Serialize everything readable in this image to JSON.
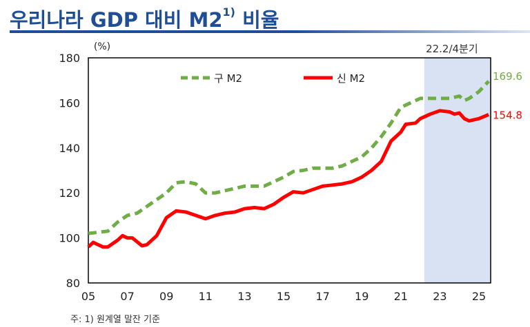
{
  "header": {
    "title": "우리나라 GDP 대비 M2",
    "title_sup": "1)"
  },
  "footnote": "주: 1) 원계열 말잔 기준",
  "chart_data": {
    "type": "line",
    "title": "우리나라 GDP 대비 M2 비율",
    "ylabel": "(%)",
    "ylim": [
      80,
      180
    ],
    "yticks": [
      80,
      100,
      120,
      140,
      160,
      180
    ],
    "xlim": [
      2005,
      2025.6
    ],
    "xticks": [
      "05",
      "07",
      "09",
      "11",
      "13",
      "15",
      "17",
      "19",
      "21",
      "23",
      "25"
    ],
    "shaded_region": {
      "label": "22.2/4분기",
      "from": 2022.2,
      "to": 2025.6,
      "color": "#d9e2f3"
    },
    "legend_placement": "top",
    "series": [
      {
        "name": "구 M2",
        "color": "#70ad47",
        "style": "dashed",
        "end_label": "169.6",
        "x": [
          2005,
          2005.5,
          2006,
          2006.5,
          2007,
          2007.5,
          2008,
          2008.5,
          2009,
          2009.5,
          2010,
          2010.5,
          2011,
          2011.5,
          2012,
          2012.5,
          2013,
          2013.5,
          2014,
          2014.5,
          2015,
          2015.5,
          2016,
          2016.5,
          2017,
          2017.5,
          2018,
          2018.5,
          2019,
          2019.5,
          2020,
          2020.5,
          2021,
          2021.5,
          2022,
          2022.5,
          2023,
          2023.5,
          2024,
          2024.25,
          2024.5,
          2025,
          2025.5
        ],
        "y": [
          102,
          102.5,
          103,
          107,
          110,
          111,
          114,
          117,
          120,
          124.5,
          125,
          124,
          120,
          120,
          121,
          122,
          123,
          123,
          123,
          125,
          127,
          129.5,
          130,
          131,
          131,
          131,
          132,
          134,
          136,
          140,
          145,
          151,
          158,
          160,
          162,
          162,
          162,
          162,
          163,
          161,
          162,
          165,
          169.6
        ]
      },
      {
        "name": "신 M2",
        "color": "#ff0000",
        "style": "solid",
        "end_label": "154.8",
        "x": [
          2005,
          2005.25,
          2005.75,
          2006,
          2006.5,
          2006.75,
          2007,
          2007.25,
          2007.75,
          2008,
          2008.5,
          2008.75,
          2009,
          2009.5,
          2010,
          2010.5,
          2011,
          2011.5,
          2012,
          2012.5,
          2013,
          2013.5,
          2014,
          2014.5,
          2015,
          2015.5,
          2016,
          2016.5,
          2017,
          2017.5,
          2018,
          2018.5,
          2019,
          2019.5,
          2020,
          2020.5,
          2021,
          2021.25,
          2021.75,
          2022,
          2022.5,
          2023,
          2023.5,
          2023.75,
          2024,
          2024.25,
          2024.5,
          2025,
          2025.5
        ],
        "y": [
          96,
          98,
          96,
          96,
          99,
          101,
          100,
          100,
          96.5,
          97,
          101,
          105,
          109,
          112,
          111.5,
          110,
          108.5,
          110,
          111,
          111.5,
          113,
          113.5,
          113,
          115,
          118,
          120.5,
          120,
          121.5,
          123,
          123.5,
          124,
          125,
          127,
          130,
          134,
          143,
          147,
          150.5,
          151,
          153,
          155,
          156.5,
          156,
          155,
          155.5,
          153,
          152,
          153,
          154.8
        ]
      }
    ]
  }
}
